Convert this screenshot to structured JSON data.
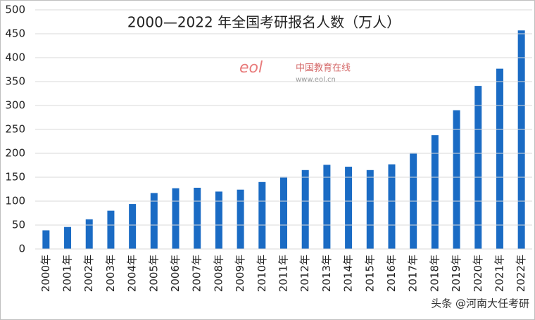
{
  "chart_data": {
    "type": "bar",
    "title": "2000—2022 年全国考研报名人数（万人）",
    "categories": [
      "2000年",
      "2001年",
      "2002年",
      "2003年",
      "2004年",
      "2005年",
      "2006年",
      "2007年",
      "2008年",
      "2009年",
      "2010年",
      "2011年",
      "2012年",
      "2013年",
      "2014年",
      "2015年",
      "2016年",
      "2017年",
      "2018年",
      "2019年",
      "2020年",
      "2021年",
      "2022年"
    ],
    "values": [
      39,
      46,
      62,
      80,
      94,
      117,
      127,
      128,
      120,
      124,
      140,
      151,
      165,
      176,
      172,
      165,
      177,
      201,
      238,
      290,
      341,
      377,
      457
    ],
    "color": "#1a6bc4",
    "ylim": [
      0,
      500
    ],
    "yticks": [
      0,
      50,
      100,
      150,
      200,
      250,
      300,
      350,
      400,
      450,
      500
    ],
    "grid": true,
    "annotations": [
      "中国教育在线",
      "www.eol.cn",
      "头条 @河南大任考研"
    ]
  }
}
